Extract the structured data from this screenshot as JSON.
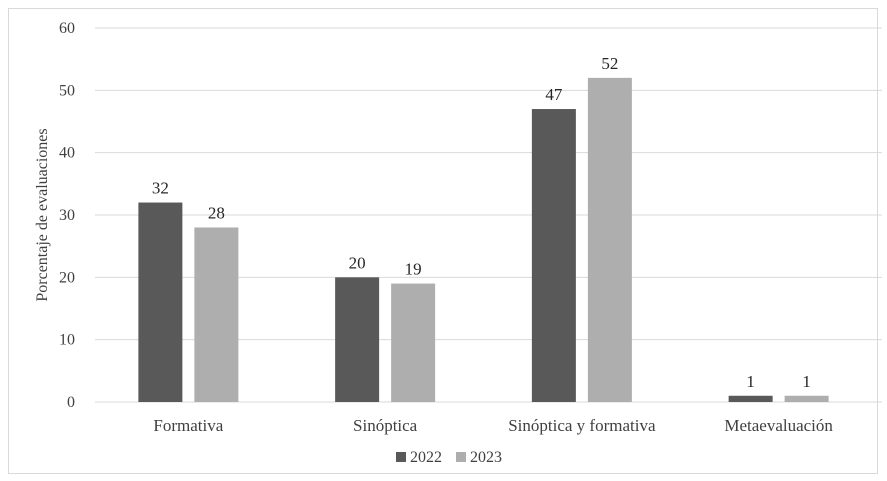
{
  "chart_data": {
    "type": "bar",
    "title": "",
    "xlabel": "",
    "ylabel": "Porcentaje de evaluaciones",
    "ylim": [
      0,
      60
    ],
    "yticks": [
      0,
      10,
      20,
      30,
      40,
      50,
      60
    ],
    "grid": true,
    "legend_position": "bottom",
    "categories": [
      "Formativa",
      "Sinóptica",
      "Sinóptica y formativa",
      "Metaevaluación"
    ],
    "series": [
      {
        "name": "2022",
        "color": "#595959",
        "values": [
          32,
          20,
          47,
          1
        ]
      },
      {
        "name": "2023",
        "color": "#aeaeae",
        "values": [
          28,
          19,
          52,
          1
        ]
      }
    ]
  }
}
